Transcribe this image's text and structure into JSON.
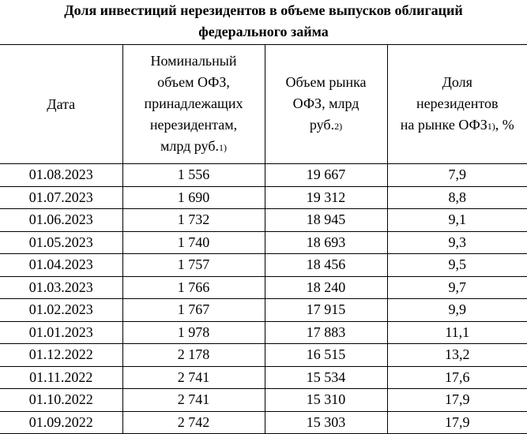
{
  "title": [
    "Доля инвестиций нерезидентов в объеме выпусков облигаций",
    "федерального займа"
  ],
  "table": {
    "header": [
      {
        "lines": [
          "Дата"
        ],
        "note": null
      },
      {
        "lines": [
          "Номинальный",
          "объем ОФЗ,",
          "принадлежащих",
          "нерезидентам,",
          "млрд руб."
        ],
        "note": "1)"
      },
      {
        "lines": [
          "Объем рынка",
          "ОФЗ, млрд",
          "руб."
        ],
        "note": "2)"
      },
      {
        "lines": [
          "Доля",
          "нерезидентов",
          "на рынке ОФЗ"
        ],
        "note": "1)",
        "tail": ", %"
      }
    ],
    "rows": [
      [
        "01.08.2023",
        "1 556",
        "19 667",
        "7,9"
      ],
      [
        "01.07.2023",
        "1 690",
        "19 312",
        "8,8"
      ],
      [
        "01.06.2023",
        "1 732",
        "18 945",
        "9,1"
      ],
      [
        "01.05.2023",
        "1 740",
        "18 693",
        "9,3"
      ],
      [
        "01.04.2023",
        "1 757",
        "18 456",
        "9,5"
      ],
      [
        "01.03.2023",
        "1 766",
        "18 240",
        "9,7"
      ],
      [
        "01.02.2023",
        "1 767",
        "17 915",
        "9,9"
      ],
      [
        "01.01.2023",
        "1 978",
        "17 883",
        "11,1"
      ],
      [
        "01.12.2022",
        "2 178",
        "16 515",
        "13,2"
      ],
      [
        "01.11.2022",
        "2 741",
        "15 534",
        "17,6"
      ],
      [
        "01.10.2022",
        "2 741",
        "15 310",
        "17,9"
      ],
      [
        "01.09.2022",
        "2 742",
        "15 303",
        "17,9"
      ]
    ]
  }
}
